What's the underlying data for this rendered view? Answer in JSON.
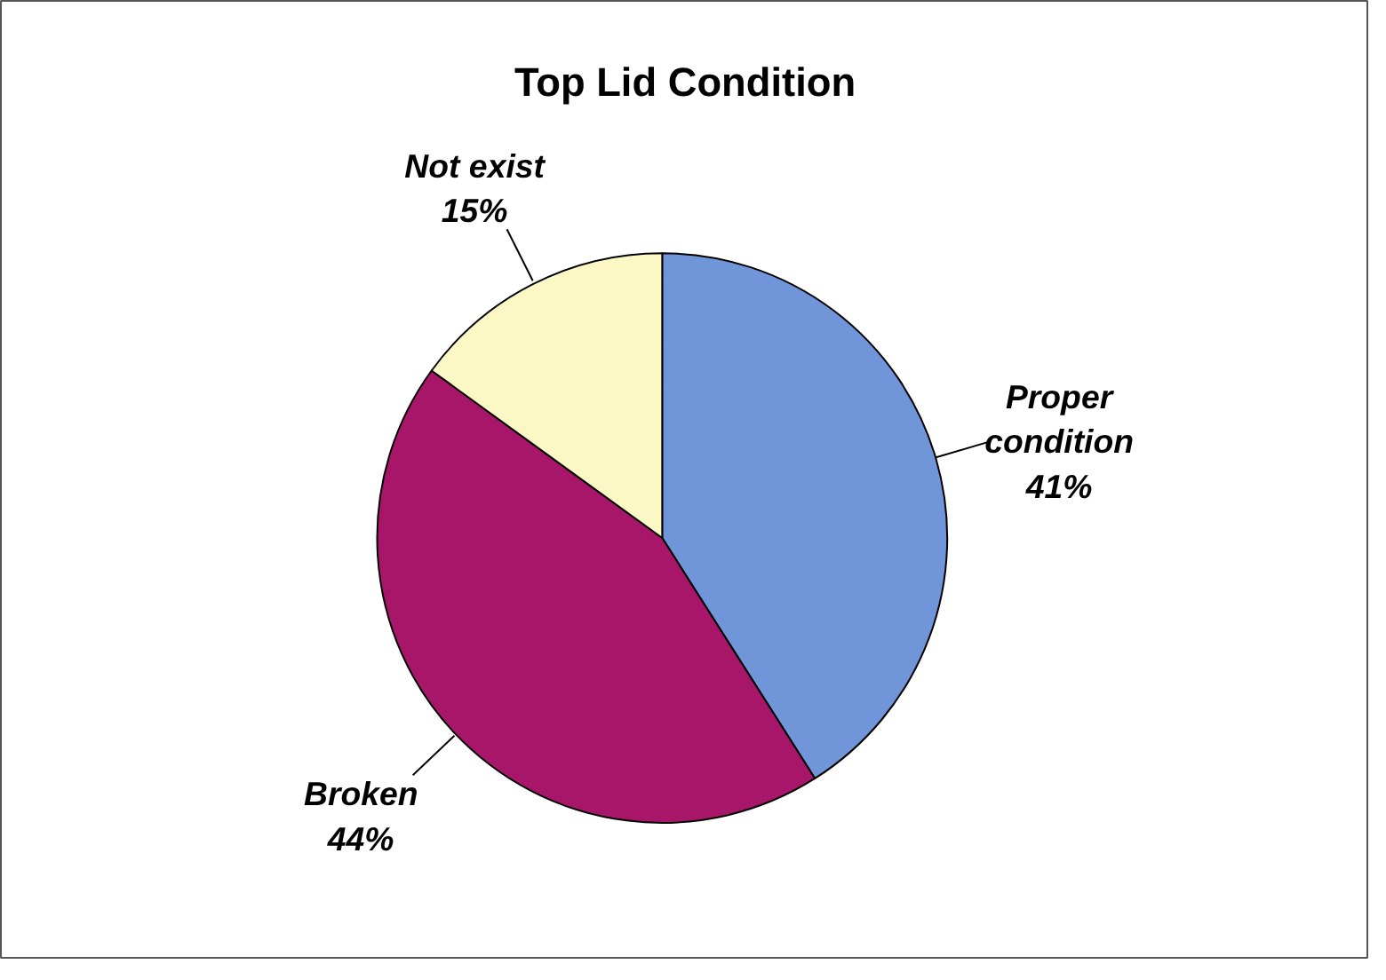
{
  "chart_data": {
    "type": "pie",
    "title": "Top Lid Condition",
    "categories": [
      "Proper condition",
      "Broken",
      "Not exist"
    ],
    "values": [
      41,
      44,
      15
    ],
    "colors": [
      "#7095d8",
      "#a8166a",
      "#fbf8c6"
    ],
    "value_labels": [
      "41%",
      "44%",
      "15%"
    ]
  }
}
